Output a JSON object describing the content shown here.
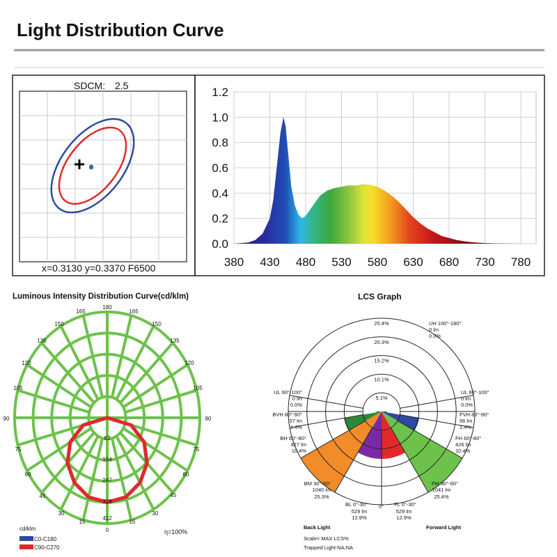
{
  "page": {
    "title": "Light Distribution Curve",
    "colors": {
      "rule": "#9a9a9a",
      "text": "#111111"
    }
  },
  "chromaticity": {
    "sdcm_label": "SDCM:",
    "sdcm_value": "2.5",
    "coordinates_text": "x=0.3130 y=0.3370 F6500",
    "colors": {
      "outer_ellipse": "#2e4aa0",
      "inner_ellipse": "#e02a2a",
      "marker": "#3b5db5"
    }
  },
  "spectrum": {
    "chart_data": {
      "type": "area",
      "title": "",
      "xlabel": "",
      "ylabel": "",
      "xlim": [
        380,
        780
      ],
      "ylim": [
        0,
        1.2
      ],
      "x_ticks": [
        380,
        430,
        480,
        530,
        580,
        630,
        680,
        730,
        780
      ],
      "y_ticks": [
        0.0,
        0.2,
        0.4,
        0.6,
        0.8,
        1.0,
        1.2
      ],
      "x_tick_labels": [
        "380",
        "430",
        "480",
        "530",
        "580",
        "630",
        "680",
        "730",
        "780"
      ],
      "y_tick_labels": [
        "0.0",
        "0.2",
        "0.4",
        "0.6",
        "0.8",
        "1.0",
        "1.2"
      ],
      "x": [
        380,
        400,
        410,
        420,
        430,
        435,
        440,
        445,
        449,
        452,
        455,
        460,
        465,
        470,
        475,
        480,
        485,
        490,
        495,
        500,
        510,
        520,
        530,
        540,
        550,
        560,
        570,
        580,
        590,
        600,
        610,
        620,
        630,
        640,
        650,
        660,
        670,
        680,
        690,
        700,
        710,
        720,
        730,
        745,
        760,
        780
      ],
      "y": [
        0.0,
        0.01,
        0.03,
        0.08,
        0.2,
        0.35,
        0.62,
        0.88,
        1.0,
        0.93,
        0.75,
        0.45,
        0.3,
        0.23,
        0.2,
        0.22,
        0.26,
        0.3,
        0.34,
        0.38,
        0.42,
        0.44,
        0.45,
        0.46,
        0.46,
        0.47,
        0.465,
        0.45,
        0.42,
        0.38,
        0.33,
        0.27,
        0.21,
        0.16,
        0.12,
        0.09,
        0.06,
        0.045,
        0.03,
        0.02,
        0.013,
        0.008,
        0.005,
        0.002,
        0.001,
        0.0
      ]
    }
  },
  "intensity": {
    "title": "Luminous Intensity Distribution Curve(cd/klm)",
    "angle_labels": {
      "top": "180",
      "upper": "165",
      "u150": "150",
      "u135": "135",
      "u120": "120",
      "u105": "105",
      "mid": "90",
      "l75": "75",
      "l60": "60",
      "l45": "45",
      "l30": "30",
      "l15": "15",
      "bottom": "0"
    },
    "ring_values": [
      "82",
      "164",
      "247",
      "329",
      "412"
    ],
    "unit_label": "cd/klm",
    "eta_label": "η=100%",
    "legend": [
      {
        "label": "C0-C180",
        "color": "#2e4aa0"
      },
      {
        "label": "C90-C270",
        "color": "#e02a2a"
      }
    ],
    "chart_data": {
      "type": "polar",
      "unit": "cd/klm",
      "r_max": 412,
      "rings": [
        82,
        164,
        247,
        329,
        412
      ],
      "series": [
        {
          "name": "C0-C180",
          "max_cd": 329,
          "angles": [
            0,
            15,
            30,
            45,
            60,
            75,
            90
          ],
          "values": [
            329,
            320,
            292,
            250,
            190,
            110,
            0
          ]
        },
        {
          "name": "C90-C270",
          "max_cd": 329,
          "angles": [
            0,
            15,
            30,
            45,
            60,
            75,
            90
          ],
          "values": [
            329,
            320,
            292,
            250,
            190,
            110,
            0
          ]
        }
      ],
      "colors": {
        "grid": "#6cc24a"
      }
    }
  },
  "lcs": {
    "title": "LCS Graph",
    "ring_labels": [
      "5.1%",
      "10.1%",
      "15.2%",
      "20.3%",
      "25.4%"
    ],
    "zero_label": "0°",
    "back_label": "Back Light",
    "forward_label": "Forward Light",
    "scale_text": "Scale= MAX LCS%",
    "trapped_text": "Trapped Light:NA,NA",
    "zones": [
      {
        "key": "UH",
        "lines": [
          "UH 100°-180°",
          "0 lm",
          "0.0%"
        ]
      },
      {
        "key": "ULL",
        "lines": [
          "UL 90°-100°",
          "0 lm",
          "0.0%"
        ]
      },
      {
        "key": "ULR",
        "lines": [
          "UL 90°-100°",
          "0 lm",
          "0.0%"
        ]
      },
      {
        "key": "BVH",
        "lines": [
          "BVH 80°-90°",
          "57 lm",
          "1.4%"
        ]
      },
      {
        "key": "FVH",
        "lines": [
          "FVH 80°-90°",
          "56 lm",
          "1.4%"
        ]
      },
      {
        "key": "BH",
        "lines": [
          "BH 60°-80°",
          "427 lm",
          "10.4%"
        ]
      },
      {
        "key": "FH",
        "lines": [
          "FH 60°-80°",
          "426 lm",
          "10.4%"
        ]
      },
      {
        "key": "BM",
        "lines": [
          "BM 30°-60°",
          "1040 lm",
          "25.3%"
        ]
      },
      {
        "key": "FM",
        "lines": [
          "FM 30°-60°",
          "1041 lm",
          "25.4%"
        ]
      },
      {
        "key": "BL",
        "lines": [
          "BL 0°-30°",
          "529 lm",
          "12.9%"
        ]
      },
      {
        "key": "FL",
        "lines": [
          "FL 0°-30°",
          "529 lm",
          "12.9%"
        ]
      }
    ],
    "chart_data": {
      "type": "polar-bar",
      "max": 25.4,
      "sectors": [
        {
          "name": "BL",
          "from": 0,
          "to": 30,
          "side": "back",
          "value": 12.9,
          "color": "#7a2aa8"
        },
        {
          "name": "FL",
          "from": 0,
          "to": 30,
          "side": "forward",
          "value": 12.9,
          "color": "#e02a2a"
        },
        {
          "name": "BM",
          "from": 30,
          "to": 60,
          "side": "back",
          "value": 25.3,
          "color": "#f28c28"
        },
        {
          "name": "FM",
          "from": 30,
          "to": 60,
          "side": "forward",
          "value": 25.4,
          "color": "#6cc24a"
        },
        {
          "name": "BH",
          "from": 60,
          "to": 80,
          "side": "back",
          "value": 10.4,
          "color": "#2a8a3a"
        },
        {
          "name": "FH",
          "from": 60,
          "to": 80,
          "side": "forward",
          "value": 10.4,
          "color": "#2e4aa0"
        },
        {
          "name": "BVH",
          "from": 80,
          "to": 90,
          "side": "back",
          "value": 1.4,
          "color": "#1f6b2c"
        },
        {
          "name": "FVH",
          "from": 80,
          "to": 90,
          "side": "forward",
          "value": 1.4,
          "color": "#233a80"
        }
      ]
    }
  }
}
